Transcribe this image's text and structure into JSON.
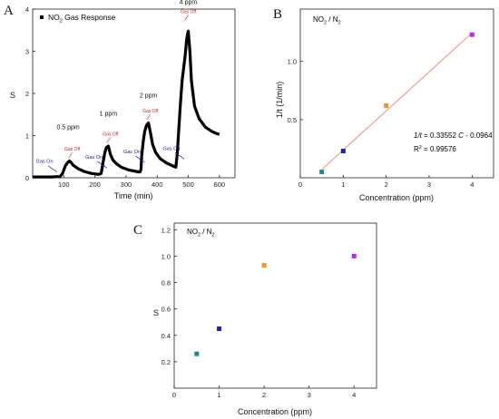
{
  "panels": {
    "a": "A",
    "b": "B",
    "c": "C"
  },
  "chart_data": [
    {
      "type": "line",
      "panel": "A",
      "legend": {
        "label_prefix": "NO",
        "label_sub": "2",
        "label_suffix": " Gas Response",
        "position": "top-left"
      },
      "xlabel": "Time (min)",
      "ylabel": "S",
      "xlim": [
        0,
        650
      ],
      "ylim": [
        0,
        4
      ],
      "x_ticks": [
        "100",
        "200",
        "300",
        "400",
        "500",
        "600"
      ],
      "y_ticks": [
        "0",
        "1",
        "2",
        "3",
        "4"
      ],
      "series": [
        {
          "x": [
            0,
            30,
            60,
            88,
            96,
            100,
            105,
            112,
            118,
            124,
            130,
            145,
            165,
            190,
            212,
            220,
            226,
            232,
            237,
            243,
            250,
            258,
            268,
            285,
            310,
            340,
            345,
            348,
            350,
            355,
            360,
            366,
            372,
            379,
            385,
            395,
            410,
            430,
            450,
            460,
            465,
            470,
            475,
            480,
            485,
            490,
            495,
            500,
            505,
            510,
            520,
            535,
            555,
            575,
            590,
            600
          ],
          "y": [
            0.02,
            0.02,
            0.02,
            0.03,
            0.1,
            0.18,
            0.28,
            0.36,
            0.4,
            0.36,
            0.3,
            0.22,
            0.15,
            0.1,
            0.08,
            0.1,
            0.35,
            0.6,
            0.72,
            0.75,
            0.55,
            0.42,
            0.34,
            0.25,
            0.18,
            0.14,
            0.14,
            0.2,
            0.5,
            0.85,
            1.1,
            1.25,
            1.3,
            1.05,
            0.8,
            0.6,
            0.45,
            0.35,
            0.28,
            0.25,
            0.6,
            1.2,
            1.8,
            2.3,
            2.6,
            2.9,
            3.3,
            3.48,
            3.0,
            2.3,
            1.7,
            1.4,
            1.2,
            1.1,
            1.05,
            1.03
          ]
        }
      ],
      "annotations": {
        "conc": [
          {
            "text": "0.5 ppm",
            "x": 114,
            "y": 1.15
          },
          {
            "text": "1 ppm",
            "x": 243,
            "y": 1.47
          },
          {
            "text": "2 ppm",
            "x": 372,
            "y": 1.9
          },
          {
            "text": "4 ppm",
            "x": 500,
            "y": 4.12
          }
        ],
        "gas_off": [
          {
            "text": "Gas Off",
            "x": 127,
            "y": 0.64
          },
          {
            "text": "Gas Off",
            "x": 250,
            "y": 1.0
          },
          {
            "text": "Gas Off",
            "x": 378,
            "y": 1.55
          },
          {
            "text": "Gas Off",
            "x": 500,
            "y": 3.9
          }
        ],
        "gas_on": [
          {
            "text": "Gas On",
            "x": 38,
            "y": 0.35
          },
          {
            "text": "Gas On",
            "x": 197,
            "y": 0.45
          },
          {
            "text": "Gas On",
            "x": 319,
            "y": 0.58
          },
          {
            "text": "Gas On",
            "x": 446,
            "y": 0.66
          }
        ],
        "color_gas_on": "#1a1a9e",
        "color_gas_off": "#d11a1a"
      }
    },
    {
      "type": "scatter",
      "panel": "B",
      "label_prefix": "NO",
      "label_sub": "2",
      "label_suffix": " / N",
      "label_sub2": "2",
      "xlabel": "Concentration (ppm)",
      "ylabel": "1/t (1/min)",
      "xlim": [
        0,
        4.5
      ],
      "ylim": [
        0,
        1.45
      ],
      "x_ticks": [
        "0",
        "1",
        "2",
        "3",
        "4"
      ],
      "y_ticks": [
        "0.5",
        "1.0"
      ],
      "points": [
        {
          "x": 0.5,
          "y": 0.05,
          "color": "#1a8a8a"
        },
        {
          "x": 1,
          "y": 0.23,
          "color": "#2222aa"
        },
        {
          "x": 2,
          "y": 0.62,
          "color": "#e89a2a"
        },
        {
          "x": 4,
          "y": 1.23,
          "color": "#b52ae8"
        }
      ],
      "fit": {
        "slope": 0.33552,
        "intercept": -0.0964,
        "x_from": 0.5,
        "x_to": 4.0,
        "color": "#f08070"
      },
      "equation": {
        "lhs": "1/t",
        "mid": " = 0.33552 ",
        "var": "C",
        "rhs": " - 0.0964"
      },
      "r2": {
        "label": "R",
        "sup": "2",
        "value": " =  0.99576"
      }
    },
    {
      "type": "scatter",
      "panel": "C",
      "label_prefix": "NO",
      "label_sub": "2",
      "label_suffix": " / N",
      "label_sub2": "2",
      "xlabel": "Concentration (ppm)",
      "ylabel": "S",
      "xlim": [
        0,
        4.5
      ],
      "ylim": [
        0,
        1.25
      ],
      "x_ticks": [
        "0",
        "1",
        "2",
        "3",
        "4"
      ],
      "y_ticks": [
        "0.2",
        "0.4",
        "0.6",
        "0.8",
        "1.0",
        "1.2"
      ],
      "points": [
        {
          "x": 0.5,
          "y": 0.26,
          "color": "#1a8a8a"
        },
        {
          "x": 1,
          "y": 0.45,
          "color": "#2222aa"
        },
        {
          "x": 2,
          "y": 0.93,
          "color": "#e89a2a"
        },
        {
          "x": 4,
          "y": 1.0,
          "color": "#b52ae8"
        }
      ]
    }
  ]
}
